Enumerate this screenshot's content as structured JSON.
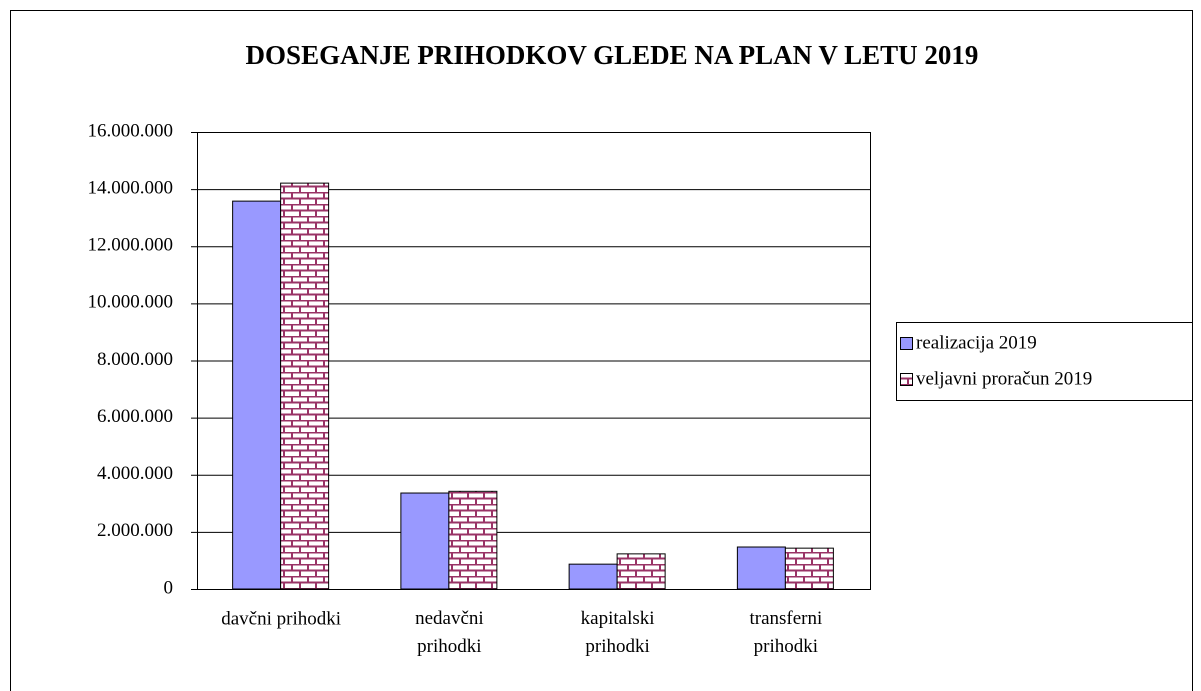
{
  "chart_data": {
    "type": "bar",
    "title": "DOSEGANJE PRIHODKOV GLEDE NA PLAN V LETU 2019",
    "categories": [
      "davčni prihodki",
      "nedavčni\nprihodki",
      "kapitalski\nprihodki",
      "transferni\nprihodki"
    ],
    "series": [
      {
        "name": "realizacija 2019",
        "color": "#9999ff",
        "values": [
          13580000,
          3360000,
          870000,
          1470000
        ]
      },
      {
        "name": "veljavni proračun 2019",
        "color": "#993366",
        "pattern": "brick",
        "values": [
          14210000,
          3420000,
          1230000,
          1430000
        ]
      }
    ],
    "ylim": [
      0,
      16000000
    ],
    "yticks": [
      0,
      {
        "value": 2000000,
        "label": "2.000.000"
      },
      {
        "value": 4000000,
        "label": "4.000.000"
      },
      {
        "value": 6000000,
        "label": "6.000.000"
      },
      {
        "value": 8000000,
        "label": "8.000.000"
      },
      {
        "value": 10000000,
        "label": "10.000.000"
      },
      {
        "value": 12000000,
        "label": "12.000.000"
      },
      {
        "value": 14000000,
        "label": "14.000.000"
      },
      {
        "value": 16000000,
        "label": "16.000.000"
      }
    ],
    "grid": true,
    "legend": "right"
  }
}
